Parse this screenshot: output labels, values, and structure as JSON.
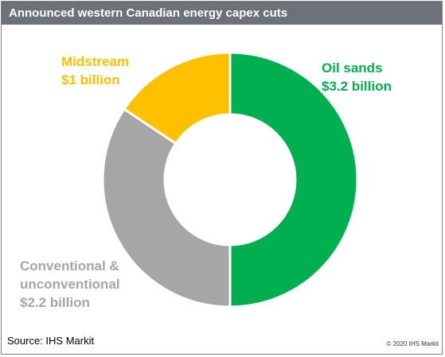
{
  "chart_data": {
    "type": "pie",
    "title": "Announced western Canadian energy capex cuts",
    "categories": [
      "Oil sands",
      "Conventional & unconventional",
      "Midstream"
    ],
    "values": [
      3.2,
      2.2,
      1.0
    ],
    "value_labels": [
      "$3.2 billion",
      "$2.2 billion",
      "$1 billion"
    ],
    "category_lines": [
      [
        "Oil sands"
      ],
      [
        "Conventional &",
        "unconventional"
      ],
      [
        "Midstream"
      ]
    ],
    "unit": "billion USD",
    "colors": [
      "#00b050",
      "#a6a6a6",
      "#ffc000"
    ],
    "donut": true
  },
  "source": "Source: IHS Markit",
  "copyright": "© 2020 IHS Markit",
  "colors": {
    "header": "#6d7278",
    "separator": "#ffffff"
  }
}
